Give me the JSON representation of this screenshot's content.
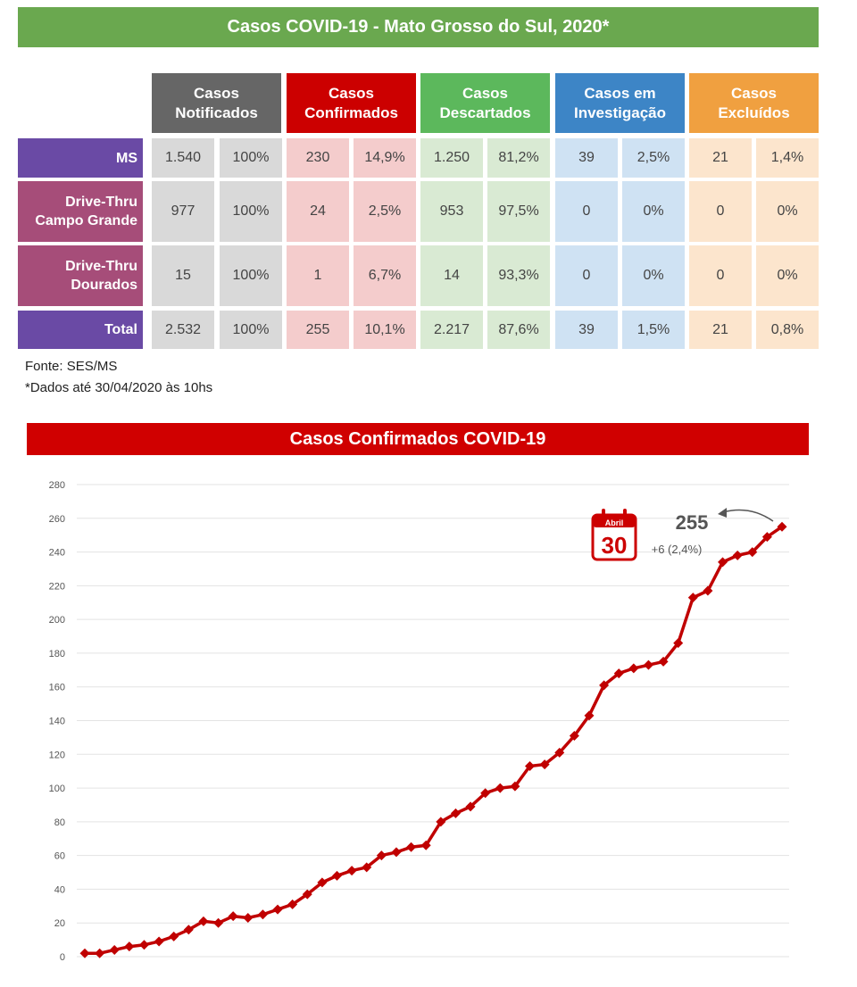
{
  "title": "Casos COVID-19 - Mato Grosso do Sul, 2020*",
  "table": {
    "headers": [
      {
        "line1": "Casos",
        "line2": "Notificados",
        "color": "#666666"
      },
      {
        "line1": "Casos",
        "line2": "Confirmados",
        "color": "#cc0000"
      },
      {
        "line1": "Casos",
        "line2": "Descartados",
        "color": "#5cb85c"
      },
      {
        "line1": "Casos em",
        "line2": "Investigação",
        "color": "#3d85c6"
      },
      {
        "line1": "Casos",
        "line2": "Excluídos",
        "color": "#f0a040"
      }
    ],
    "rows": [
      {
        "label1": "MS",
        "label2": "",
        "color": "#6a4aa5",
        "cells": [
          "1.540",
          "100%",
          "230",
          "14,9%",
          "1.250",
          "81,2%",
          "39",
          "2,5%",
          "21",
          "1,4%"
        ]
      },
      {
        "label1": "Drive-Thru",
        "label2": "Campo Grande",
        "color": "#a64d79",
        "cells": [
          "977",
          "100%",
          "24",
          "2,5%",
          "953",
          "97,5%",
          "0",
          "0%",
          "0",
          "0%"
        ]
      },
      {
        "label1": "Drive-Thru",
        "label2": "Dourados",
        "color": "#a64d79",
        "cells": [
          "15",
          "100%",
          "1",
          "6,7%",
          "14",
          "93,3%",
          "0",
          "0%",
          "0",
          "0%"
        ]
      },
      {
        "label1": "Total",
        "label2": "",
        "color": "#6a4aa5",
        "cells": [
          "2.532",
          "100%",
          "255",
          "10,1%",
          "2.217",
          "87,6%",
          "39",
          "1,5%",
          "21",
          "0,8%"
        ]
      }
    ],
    "cell_colors": [
      "#d9d9d9",
      "#f4cccc",
      "#d9ead3",
      "#cfe2f3",
      "#fce5cd"
    ]
  },
  "source": "Fonte: SES/MS",
  "footnote": "*Dados até 30/04/2020 às 10hs",
  "chart_banner": "Casos Confirmados COVID-19",
  "chart_data": {
    "type": "line",
    "title": "Casos Confirmados COVID-19",
    "xlabel": "",
    "ylabel": "",
    "ylim": [
      0,
      280
    ],
    "yticks": [
      0,
      20,
      40,
      60,
      80,
      100,
      120,
      140,
      160,
      180,
      200,
      220,
      240,
      260,
      280
    ],
    "series": [
      {
        "name": "Casos Confirmados",
        "color": "#c00000",
        "values": [
          2,
          2,
          4,
          6,
          7,
          9,
          12,
          16,
          21,
          20,
          24,
          23,
          25,
          28,
          31,
          37,
          44,
          48,
          51,
          53,
          60,
          62,
          65,
          66,
          80,
          85,
          89,
          97,
          100,
          101,
          113,
          114,
          121,
          131,
          143,
          161,
          168,
          171,
          173,
          175,
          186,
          213,
          217,
          234,
          238,
          240,
          249,
          255
        ]
      }
    ],
    "annotation": {
      "calendar_month": "Abril",
      "calendar_day": "30",
      "value": "255",
      "delta": "+6 (2,4%)"
    }
  }
}
